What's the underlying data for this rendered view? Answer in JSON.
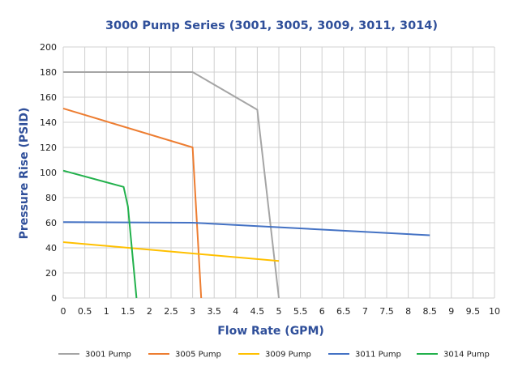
{
  "chart_data": {
    "type": "line",
    "title": "3000 Pump Series (3001, 3005, 3009, 3011, 3014)",
    "xlabel": "Flow Rate (GPM)",
    "ylabel": "Pressure Rise (PSID)",
    "xlim": [
      0,
      10
    ],
    "ylim": [
      0,
      200
    ],
    "xticks": [
      0,
      0.5,
      1,
      1.5,
      2,
      2.5,
      3,
      3.5,
      4,
      4.5,
      5,
      5.5,
      6,
      6.5,
      7,
      7.5,
      8,
      8.5,
      9,
      9.5,
      10
    ],
    "xtick_labels": [
      "0",
      "0.5",
      "1",
      "1.5",
      "2",
      "2.5",
      "3",
      "3.5",
      "4",
      "4.5",
      "5",
      "5.5",
      "6",
      "6.5",
      "7",
      "7.5",
      "8",
      "8.5",
      "9",
      "9.5",
      "10"
    ],
    "yticks": [
      0,
      20,
      40,
      60,
      80,
      100,
      120,
      140,
      160,
      180,
      200
    ],
    "ytick_labels": [
      "0",
      "20",
      "40",
      "60",
      "80",
      "100",
      "120",
      "140",
      "160",
      "180",
      "200"
    ],
    "grid": true,
    "legend_position": "bottom",
    "series": [
      {
        "name": "3001 Pump",
        "color": "#a5a5a5",
        "points": [
          [
            0,
            180
          ],
          [
            3,
            180
          ],
          [
            4.5,
            150
          ],
          [
            5,
            0
          ]
        ]
      },
      {
        "name": "3005 Pump",
        "color": "#ed7d31",
        "points": [
          [
            0,
            151
          ],
          [
            3,
            120
          ],
          [
            3.2,
            0
          ]
        ]
      },
      {
        "name": "3009 Pump",
        "color": "#ffc000",
        "points": [
          [
            0,
            44.5
          ],
          [
            5,
            29.5
          ]
        ]
      },
      {
        "name": "3011 Pump",
        "color": "#4472c4",
        "points": [
          [
            0,
            60.5
          ],
          [
            3,
            60
          ],
          [
            8.5,
            50
          ]
        ]
      },
      {
        "name": "3014 Pump",
        "color": "#22b14c",
        "points": [
          [
            0,
            101.5
          ],
          [
            1.4,
            88.5
          ],
          [
            1.5,
            73
          ],
          [
            1.7,
            0
          ]
        ]
      }
    ]
  }
}
